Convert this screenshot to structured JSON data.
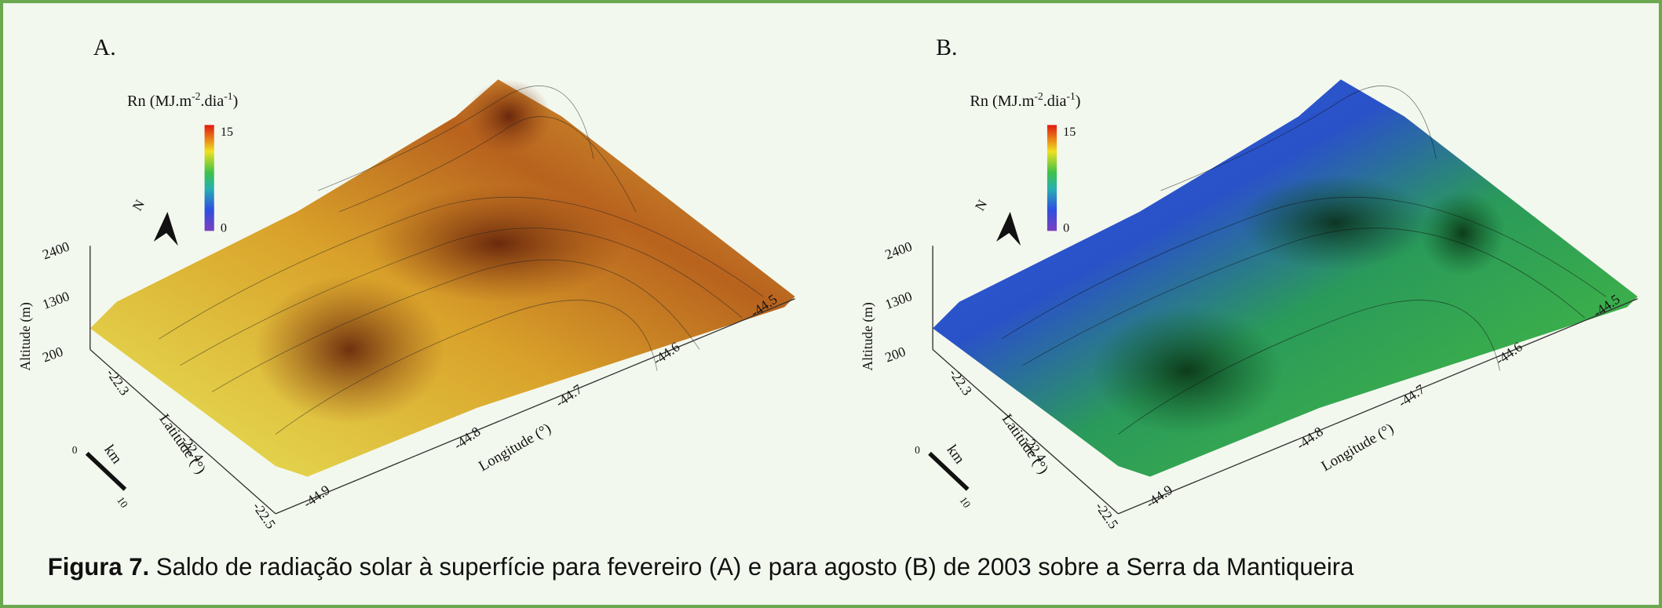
{
  "figure": {
    "panels": [
      {
        "label": "A.",
        "colorbar": {
          "title_parts": [
            "Rn (MJ.m",
            "-2",
            ".dia",
            "-1",
            ")"
          ],
          "max": "15",
          "min": "0"
        },
        "north": "N",
        "altitude": {
          "title": "Altitude (m)",
          "ticks": [
            "2400",
            "1300",
            "200"
          ]
        },
        "latitude": {
          "title": "Latitude (°)",
          "ticks": [
            "-22.3",
            "-22.4",
            "-22.5"
          ]
        },
        "longitude": {
          "title": "Longitude (°)",
          "ticks": [
            "-44.9",
            "-44.8",
            "-44.7",
            "-44.6",
            "-44.5"
          ]
        },
        "scale": {
          "unit": "km",
          "start": "0",
          "end": "10"
        }
      },
      {
        "label": "B.",
        "colorbar": {
          "title_parts": [
            "Rn (MJ.m",
            "-2",
            ".dia",
            "-1",
            ")"
          ],
          "max": "15",
          "min": "0"
        },
        "north": "N",
        "altitude": {
          "title": "Altitude (m)",
          "ticks": [
            "2400",
            "1300",
            "200"
          ]
        },
        "latitude": {
          "title": "Latitude (°)",
          "ticks": [
            "-22.3",
            "-22.4",
            "-22.5"
          ]
        },
        "longitude": {
          "title": "Longitude (°)",
          "ticks": [
            "-44.9",
            "-44.8",
            "-44.7",
            "-44.6",
            "-44.5"
          ]
        },
        "scale": {
          "unit": "km",
          "start": "0",
          "end": "10"
        }
      }
    ],
    "caption": {
      "label": "Figura 7.",
      "text": " Saldo de radiação solar à superfície para fevereiro (A) e para agosto (B) de 2003 sobre a Serra da Mantiqueira"
    }
  }
}
